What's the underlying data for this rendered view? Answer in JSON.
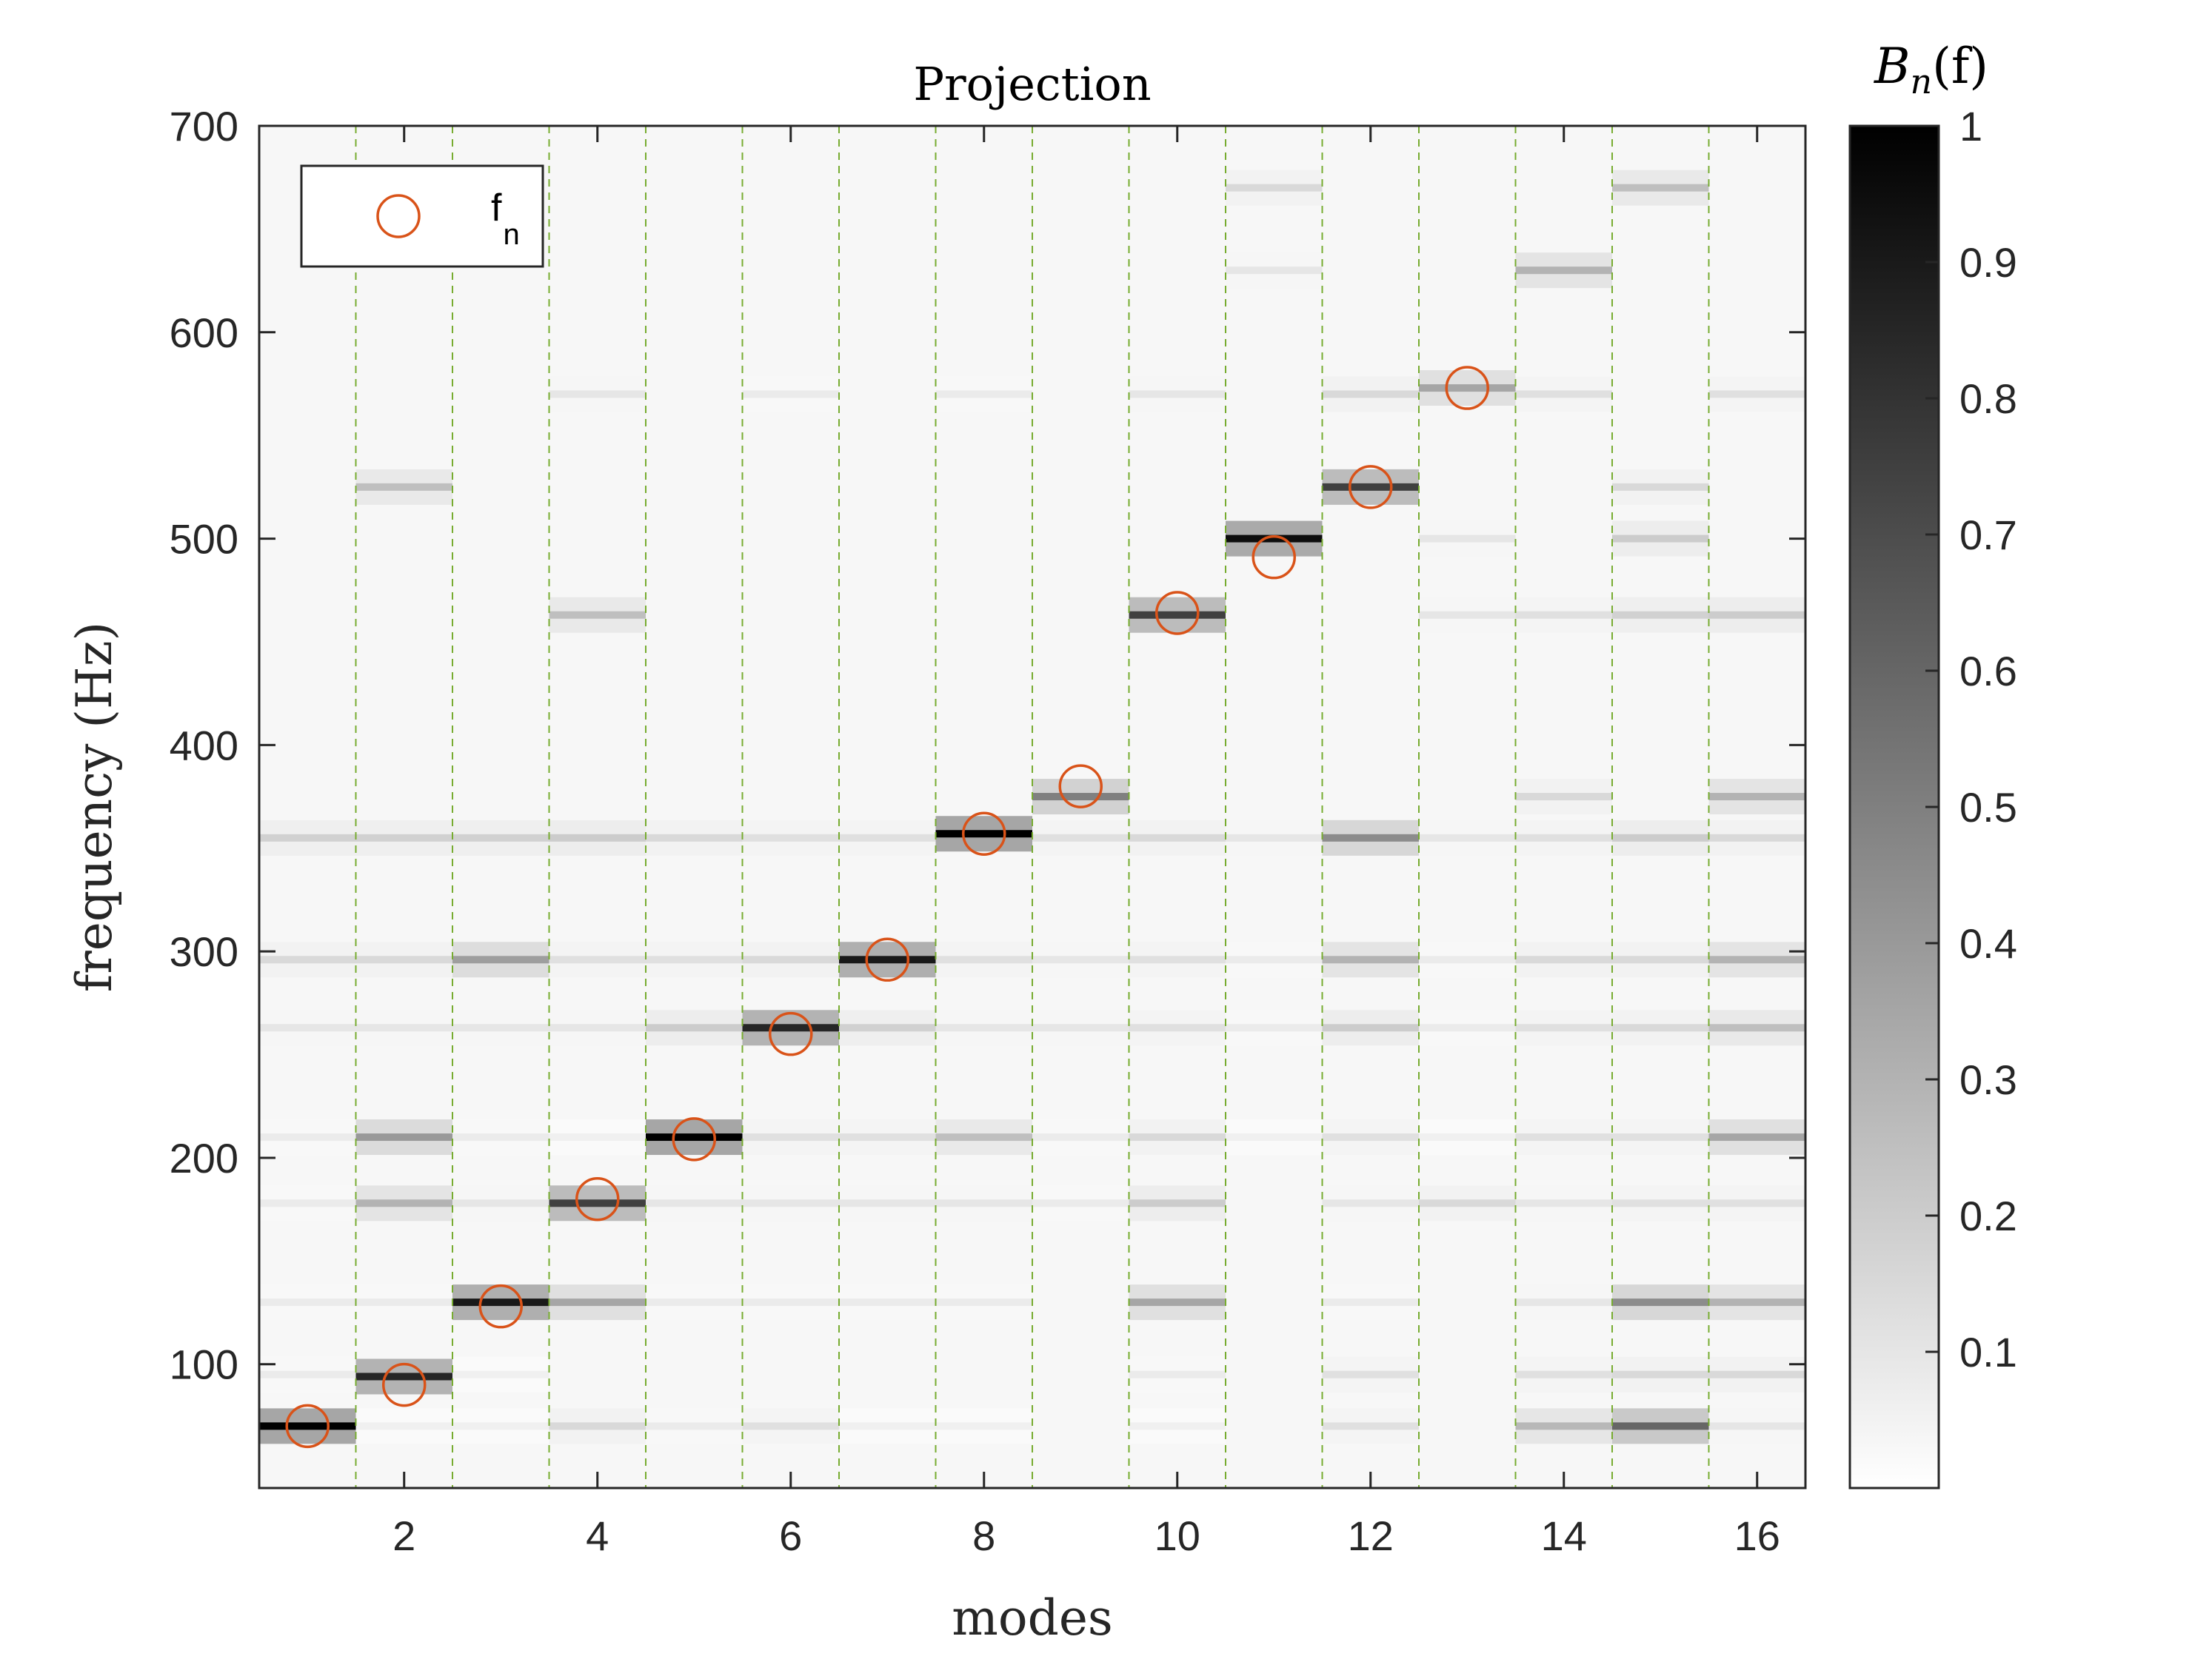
{
  "chart_data": {
    "type": "heatmap",
    "title": "Projection",
    "xlabel": "modes",
    "ylabel": "frequency (Hz)",
    "xlim": [
      0.5,
      16.5
    ],
    "ylim": [
      40,
      700
    ],
    "x_ticks": [
      2,
      4,
      6,
      8,
      10,
      12,
      14,
      16
    ],
    "y_ticks": [
      100,
      200,
      300,
      400,
      500,
      600,
      700
    ],
    "grid": false,
    "mode_separators": [
      1.5,
      2.5,
      3.5,
      4.5,
      5.5,
      6.5,
      7.5,
      8.5,
      9.5,
      10.5,
      11.5,
      12.5,
      13.5,
      14.5,
      15.5
    ],
    "colorbar": {
      "label": "B_n(f)",
      "label_base": "B",
      "label_sub": "n",
      "label_arg": "(f)",
      "range": [
        0,
        1
      ],
      "ticks": [
        0.1,
        0.2,
        0.3,
        0.4,
        0.5,
        0.6,
        0.7,
        0.8,
        0.9,
        1
      ],
      "colormap": "white-to-black"
    },
    "legend": {
      "position": "top-left",
      "entries": [
        {
          "label_base": "f",
          "label_sub": "n",
          "marker": "circle",
          "color": "#d95319"
        }
      ]
    },
    "series": [
      {
        "name": "f_n",
        "type": "scatter",
        "x": [
          1,
          2,
          3,
          4,
          5,
          6,
          7,
          8,
          9,
          10,
          11,
          12,
          13
        ],
        "y": [
          70,
          90,
          128,
          180,
          209,
          260,
          296,
          357,
          380,
          464,
          491,
          525,
          573
        ]
      }
    ],
    "heatmap_bands": [
      {
        "mode": 1,
        "bands": [
          [
            70,
            1.0
          ],
          [
            355,
            0.18
          ],
          [
            296,
            0.15
          ],
          [
            263,
            0.1
          ],
          [
            210,
            0.08
          ],
          [
            178,
            0.08
          ],
          [
            130,
            0.08
          ],
          [
            95,
            0.08
          ]
        ]
      },
      {
        "mode": 2,
        "bands": [
          [
            94,
            0.85
          ],
          [
            210,
            0.4
          ],
          [
            178,
            0.3
          ],
          [
            525,
            0.25
          ],
          [
            355,
            0.18
          ],
          [
            296,
            0.15
          ],
          [
            263,
            0.1
          ],
          [
            130,
            0.08
          ],
          [
            70,
            0.06
          ]
        ]
      },
      {
        "mode": 3,
        "bands": [
          [
            130,
            0.9
          ],
          [
            296,
            0.38
          ],
          [
            355,
            0.18
          ],
          [
            263,
            0.1
          ],
          [
            178,
            0.1
          ],
          [
            210,
            0.08
          ],
          [
            95,
            0.06
          ],
          [
            70,
            0.06
          ]
        ]
      },
      {
        "mode": 4,
        "bands": [
          [
            178,
            0.75
          ],
          [
            130,
            0.35
          ],
          [
            463,
            0.25
          ],
          [
            355,
            0.2
          ],
          [
            296,
            0.12
          ],
          [
            263,
            0.1
          ],
          [
            70,
            0.15
          ],
          [
            570,
            0.1
          ],
          [
            210,
            0.06
          ]
        ]
      },
      {
        "mode": 5,
        "bands": [
          [
            210,
            1.0
          ],
          [
            263,
            0.2
          ],
          [
            296,
            0.12
          ],
          [
            355,
            0.15
          ],
          [
            178,
            0.1
          ],
          [
            130,
            0.08
          ],
          [
            70,
            0.08
          ]
        ]
      },
      {
        "mode": 6,
        "bands": [
          [
            263,
            0.85
          ],
          [
            296,
            0.15
          ],
          [
            355,
            0.12
          ],
          [
            210,
            0.12
          ],
          [
            178,
            0.1
          ],
          [
            130,
            0.08
          ],
          [
            70,
            0.12
          ],
          [
            570,
            0.08
          ]
        ]
      },
      {
        "mode": 7,
        "bands": [
          [
            296,
            0.9
          ],
          [
            263,
            0.18
          ],
          [
            355,
            0.12
          ],
          [
            210,
            0.12
          ],
          [
            178,
            0.1
          ],
          [
            130,
            0.08
          ],
          [
            70,
            0.06
          ]
        ]
      },
      {
        "mode": 8,
        "bands": [
          [
            357,
            1.0
          ],
          [
            210,
            0.25
          ],
          [
            296,
            0.12
          ],
          [
            263,
            0.1
          ],
          [
            178,
            0.1
          ],
          [
            130,
            0.08
          ],
          [
            570,
            0.08
          ],
          [
            70,
            0.06
          ]
        ]
      },
      {
        "mode": 9,
        "bands": [
          [
            375,
            0.5
          ],
          [
            355,
            0.12
          ],
          [
            296,
            0.1
          ],
          [
            263,
            0.1
          ],
          [
            210,
            0.08
          ],
          [
            178,
            0.08
          ]
        ]
      },
      {
        "mode": 10,
        "bands": [
          [
            463,
            0.75
          ],
          [
            130,
            0.35
          ],
          [
            178,
            0.2
          ],
          [
            210,
            0.15
          ],
          [
            355,
            0.15
          ],
          [
            296,
            0.12
          ],
          [
            263,
            0.12
          ],
          [
            570,
            0.1
          ],
          [
            95,
            0.08
          ],
          [
            70,
            0.06
          ]
        ]
      },
      {
        "mode": 11,
        "bands": [
          [
            500,
            0.95
          ],
          [
            670,
            0.15
          ],
          [
            630,
            0.1
          ],
          [
            355,
            0.1
          ],
          [
            296,
            0.08
          ],
          [
            263,
            0.08
          ],
          [
            210,
            0.06
          ]
        ]
      },
      {
        "mode": 12,
        "bands": [
          [
            525,
            0.75
          ],
          [
            355,
            0.45
          ],
          [
            296,
            0.3
          ],
          [
            263,
            0.2
          ],
          [
            570,
            0.15
          ],
          [
            210,
            0.12
          ],
          [
            178,
            0.1
          ],
          [
            130,
            0.08
          ],
          [
            95,
            0.12
          ],
          [
            70,
            0.12
          ]
        ]
      },
      {
        "mode": 13,
        "bands": [
          [
            573,
            0.35
          ],
          [
            500,
            0.1
          ],
          [
            463,
            0.1
          ],
          [
            355,
            0.1
          ],
          [
            296,
            0.08
          ],
          [
            263,
            0.08
          ],
          [
            210,
            0.06
          ],
          [
            178,
            0.15
          ]
        ]
      },
      {
        "mode": 14,
        "bands": [
          [
            630,
            0.3
          ],
          [
            570,
            0.12
          ],
          [
            463,
            0.12
          ],
          [
            375,
            0.15
          ],
          [
            355,
            0.12
          ],
          [
            296,
            0.15
          ],
          [
            263,
            0.12
          ],
          [
            210,
            0.12
          ],
          [
            178,
            0.1
          ],
          [
            130,
            0.1
          ],
          [
            95,
            0.12
          ],
          [
            70,
            0.28
          ]
        ]
      },
      {
        "mode": 15,
        "bands": [
          [
            670,
            0.25
          ],
          [
            525,
            0.15
          ],
          [
            500,
            0.2
          ],
          [
            463,
            0.18
          ],
          [
            355,
            0.2
          ],
          [
            296,
            0.15
          ],
          [
            263,
            0.15
          ],
          [
            210,
            0.12
          ],
          [
            178,
            0.12
          ],
          [
            130,
            0.45
          ],
          [
            95,
            0.15
          ],
          [
            70,
            0.6
          ]
        ]
      },
      {
        "mode": 16,
        "bands": [
          [
            570,
            0.12
          ],
          [
            463,
            0.2
          ],
          [
            375,
            0.3
          ],
          [
            355,
            0.15
          ],
          [
            296,
            0.3
          ],
          [
            263,
            0.25
          ],
          [
            210,
            0.35
          ],
          [
            178,
            0.12
          ],
          [
            130,
            0.3
          ],
          [
            95,
            0.15
          ],
          [
            70,
            0.1
          ]
        ]
      }
    ]
  }
}
